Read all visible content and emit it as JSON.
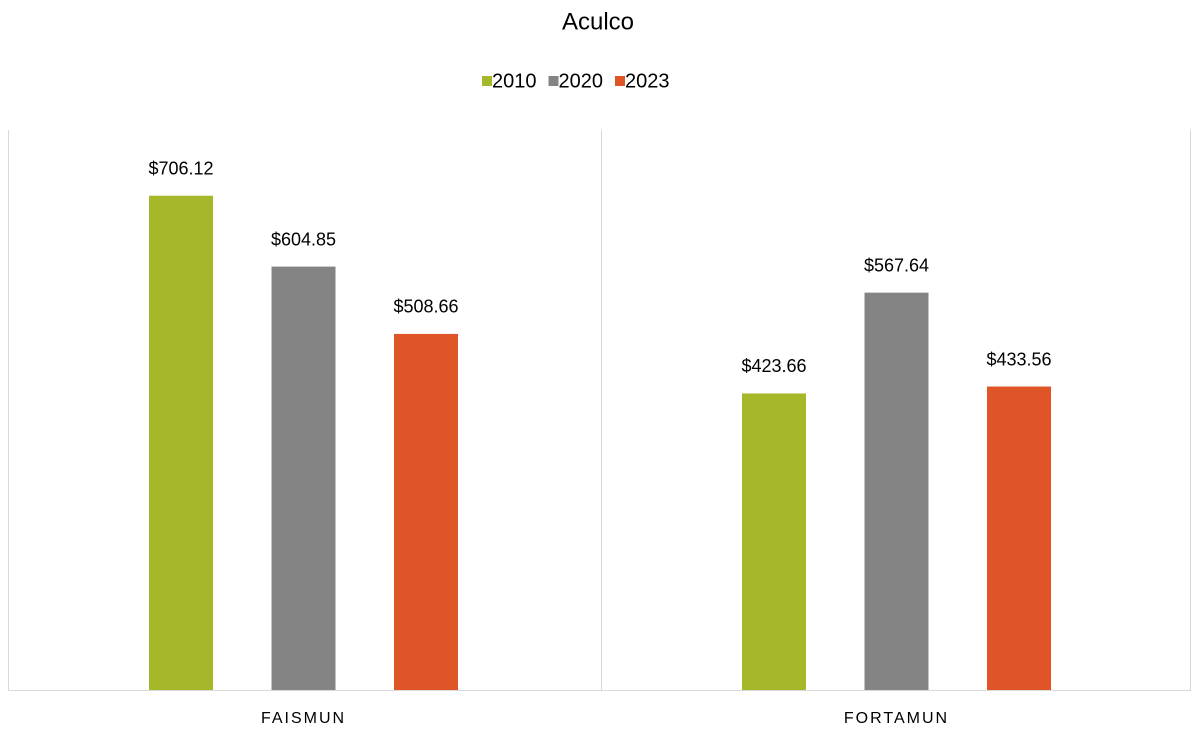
{
  "chart_data": {
    "type": "bar",
    "title": "Aculco",
    "categories": [
      "FAISMUN",
      "FORTAMUN"
    ],
    "series": [
      {
        "name": "2010",
        "color": "#a7b72a",
        "values": [
          706.12,
          423.66
        ],
        "value_labels": [
          "$706.12",
          "$423.66"
        ]
      },
      {
        "name": "2020",
        "color": "#848484",
        "values": [
          604.85,
          567.64
        ],
        "value_labels": [
          "$604.85",
          "$567.64"
        ]
      },
      {
        "name": "2023",
        "color": "#e05528",
        "values": [
          508.66,
          433.56
        ],
        "value_labels": [
          "$508.66",
          "$433.56"
        ]
      }
    ],
    "ylim": [
      0,
      800
    ],
    "legend": "top"
  }
}
